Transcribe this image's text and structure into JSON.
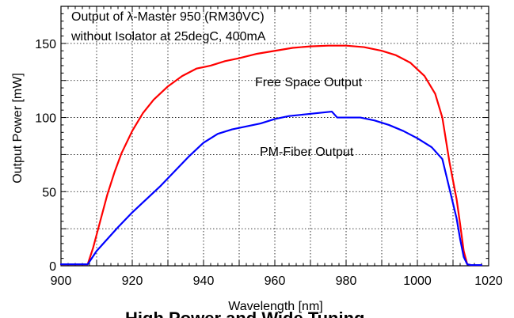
{
  "chart_data": {
    "type": "line",
    "title_lines": [
      "Output of λ-Master 950 (RM30VC)",
      "without Isolator at 25degC, 400mA"
    ],
    "xlabel": "Wavelength [nm]",
    "ylabel": "Output Power [mW]",
    "xlim": [
      900,
      1020
    ],
    "ylim": [
      0,
      175
    ],
    "xticks": [
      900,
      920,
      940,
      960,
      980,
      1000,
      1020
    ],
    "yticks": [
      0,
      50,
      100,
      150
    ],
    "grid": true,
    "annotations": [
      "Free Space Output",
      "PM-Fiber Output"
    ],
    "footer_text": "High Power and Wide Tuning",
    "series": [
      {
        "name": "Free Space Output",
        "color": "#ff0000",
        "x": [
          900,
          903,
          907.5,
          909,
          911,
          913,
          915,
          917,
          920,
          923,
          926,
          930,
          934,
          938,
          942,
          946,
          950,
          955,
          960,
          965,
          970,
          975,
          980,
          985,
          990,
          994,
          998,
          1002,
          1005,
          1007,
          1009,
          1011,
          1012,
          1013,
          1014,
          1015,
          1018
        ],
        "y": [
          1,
          1,
          1,
          12,
          30,
          48,
          63,
          76,
          91,
          103,
          112,
          121,
          128,
          133,
          135,
          138,
          140,
          143,
          145,
          147,
          148,
          148.5,
          148.5,
          147.5,
          145,
          142,
          137,
          128,
          116,
          100,
          70,
          45,
          28,
          10,
          1,
          0.5,
          0.5
        ]
      },
      {
        "name": "PM-Fiber Output",
        "color": "#0000ff",
        "x": [
          900,
          903,
          907.5,
          910,
          913,
          916,
          920,
          924,
          928,
          932,
          936,
          940,
          944,
          948,
          952,
          956,
          960,
          964,
          968,
          972,
          976,
          977.5,
          980,
          984,
          988,
          992,
          996,
          1000,
          1004,
          1007,
          1009,
          1011,
          1012,
          1013,
          1014,
          1015,
          1018
        ],
        "y": [
          1,
          1,
          1,
          10,
          18,
          26,
          36,
          45,
          54,
          64,
          74,
          83,
          89,
          92,
          94,
          96,
          99,
          101,
          102,
          103,
          104,
          100,
          100,
          100,
          98,
          95,
          91,
          86,
          80,
          72,
          52,
          32,
          18,
          6,
          1,
          0.5,
          0.5
        ]
      }
    ]
  }
}
